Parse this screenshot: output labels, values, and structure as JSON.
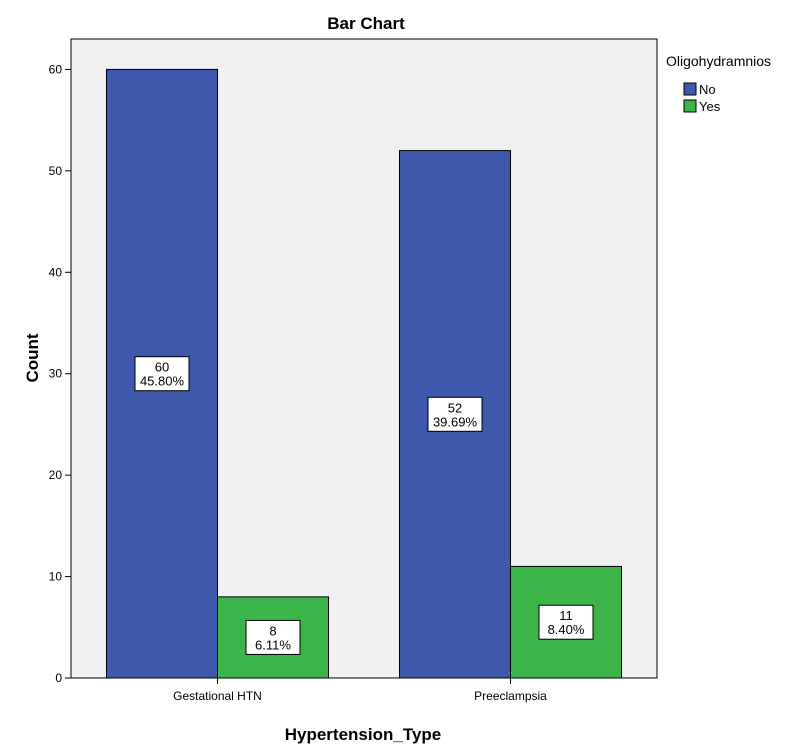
{
  "chart_data": {
    "type": "bar",
    "title": "Bar Chart",
    "xlabel": "Hypertension_Type",
    "ylabel": "Count",
    "categories": [
      "Gestational HTN",
      "Preeclampsia"
    ],
    "series": [
      {
        "name": "No",
        "values": [
          60,
          52
        ],
        "labels": [
          "45.80%",
          "39.69%"
        ],
        "color": "#3e58ac"
      },
      {
        "name": "Yes",
        "values": [
          8,
          11
        ],
        "labels": [
          "6.11%",
          "8.40%"
        ],
        "color": "#3bb54a"
      }
    ],
    "ylim": [
      0,
      63
    ],
    "yticks": [
      0,
      10,
      20,
      30,
      40,
      50,
      60
    ],
    "legend": {
      "title": "Oligohydramnios",
      "position": "top-right"
    },
    "grid": false,
    "background": "#f0f0f0"
  }
}
